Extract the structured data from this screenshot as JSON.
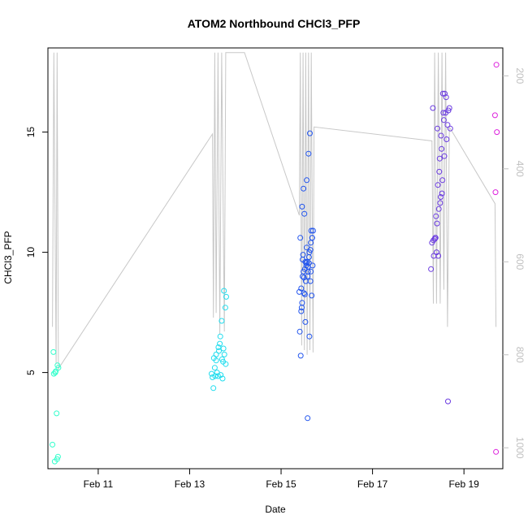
{
  "chart_data": {
    "type": "scatter",
    "title": "ATOM2 Northbound CHCl3_PFP",
    "xlabel": "Date",
    "ylabel": "CHCl3_PFP",
    "xlim": [
      9.9,
      19.85
    ],
    "ylim": [
      1.0,
      18.5
    ],
    "x_ticks": [
      {
        "value": 11,
        "label": "Feb 11"
      },
      {
        "value": 13,
        "label": "Feb 13"
      },
      {
        "value": 15,
        "label": "Feb 15"
      },
      {
        "value": 17,
        "label": "Feb 17"
      },
      {
        "value": 19,
        "label": "Feb 19"
      }
    ],
    "y_ticks": [
      5,
      10,
      15
    ],
    "y2_ticks": [
      200,
      400,
      600,
      800,
      1000
    ],
    "y2_range_at_ylim": [
      1045,
      140
    ],
    "y2_color": "#c0c0c0",
    "grid": false,
    "series": [
      {
        "color": "#33ffcc",
        "x": [
          10.0,
          10.02,
          10.03,
          10.05,
          10.06,
          10.07,
          10.09,
          10.1,
          10.11,
          10.12,
          10.13
        ],
        "y": [
          2.0,
          5.85,
          4.95,
          1.3,
          5.0,
          5.05,
          3.3,
          1.4,
          5.3,
          1.5,
          5.2
        ]
      },
      {
        "color": "#22ddee",
        "x": [
          13.48,
          13.5,
          13.52,
          13.53,
          13.55,
          13.56,
          13.58,
          13.6,
          13.62,
          13.64,
          13.66,
          13.68,
          13.7,
          13.72,
          13.73,
          13.75,
          13.76,
          13.78,
          13.8,
          13.58,
          13.63,
          13.67,
          13.71,
          13.74,
          13.79
        ],
        "y": [
          4.95,
          4.8,
          4.35,
          5.6,
          5.2,
          4.85,
          5.75,
          5.0,
          4.85,
          5.9,
          6.2,
          4.9,
          7.15,
          4.75,
          5.45,
          8.4,
          5.75,
          7.7,
          8.15,
          5.5,
          6.05,
          6.5,
          5.55,
          6.0,
          5.35
        ]
      },
      {
        "color": "#2255ee",
        "x": [
          15.4,
          15.41,
          15.42,
          15.43,
          15.44,
          15.45,
          15.46,
          15.47,
          15.48,
          15.49,
          15.5,
          15.51,
          15.52,
          15.53,
          15.54,
          15.55,
          15.56,
          15.57,
          15.58,
          15.59,
          15.6,
          15.61,
          15.62,
          15.63,
          15.64,
          15.65,
          15.66,
          15.67,
          15.68,
          15.69,
          15.7,
          15.44,
          15.47,
          15.5,
          15.53,
          15.56,
          15.59,
          15.62,
          15.65,
          15.68,
          15.46,
          15.52,
          15.58,
          15.64,
          15.49,
          15.55,
          15.61
        ],
        "y": [
          8.35,
          6.7,
          10.6,
          5.7,
          8.5,
          7.7,
          11.9,
          9.0,
          9.9,
          12.65,
          8.3,
          11.6,
          9.3,
          9.6,
          8.8,
          9.45,
          13.0,
          9.6,
          3.1,
          9.2,
          14.1,
          9.55,
          6.5,
          14.95,
          8.8,
          9.2,
          10.9,
          8.2,
          10.6,
          9.45,
          10.9,
          7.55,
          9.7,
          8.95,
          7.1,
          10.2,
          9.4,
          10.0,
          10.4,
          10.6,
          7.9,
          8.25,
          9.0,
          10.1,
          9.2,
          9.55,
          9.8
        ]
      },
      {
        "color": "#6a3ae0",
        "x": [
          18.28,
          18.3,
          18.32,
          18.34,
          18.36,
          18.38,
          18.4,
          18.42,
          18.44,
          18.46,
          18.48,
          18.5,
          18.52,
          18.54,
          18.56,
          18.58,
          18.6,
          18.62,
          18.64,
          18.66,
          18.68,
          18.7,
          18.33,
          18.37,
          18.41,
          18.45,
          18.49,
          18.53,
          18.57,
          18.61,
          18.65,
          18.39,
          18.43,
          18.47,
          18.51,
          18.55
        ],
        "y": [
          9.3,
          10.4,
          16.0,
          9.85,
          10.55,
          10.6,
          10.0,
          15.15,
          9.85,
          13.35,
          12.05,
          14.85,
          12.45,
          16.6,
          15.5,
          16.6,
          15.8,
          14.7,
          15.3,
          15.9,
          16.0,
          15.15,
          10.5,
          10.6,
          11.2,
          11.8,
          12.3,
          13.0,
          14.0,
          16.45,
          3.8,
          11.5,
          12.8,
          13.9,
          14.3,
          15.8
        ]
      },
      {
        "color": "#dd22dd",
        "x": [
          19.68,
          19.69,
          19.7,
          19.71,
          19.72
        ],
        "y": [
          15.7,
          12.5,
          1.7,
          17.8,
          15.0
        ]
      }
    ],
    "secondary_line": {
      "color": "#c8c8c8",
      "y2_values": [
        [
          10.0,
          740
        ],
        [
          10.03,
          150
        ],
        [
          10.05,
          420
        ],
        [
          10.08,
          820
        ],
        [
          10.1,
          150
        ],
        [
          10.13,
          830
        ],
        [
          13.5,
          325
        ],
        [
          13.52,
          720
        ],
        [
          13.55,
          150
        ],
        [
          13.58,
          710
        ],
        [
          13.62,
          150
        ],
        [
          13.66,
          755
        ],
        [
          13.7,
          150
        ],
        [
          13.76,
          750
        ],
        [
          13.79,
          150
        ],
        [
          14.2,
          150
        ],
        [
          15.4,
          500
        ],
        [
          15.42,
          150
        ],
        [
          15.45,
          780
        ],
        [
          15.48,
          150
        ],
        [
          15.51,
          790
        ],
        [
          15.54,
          150
        ],
        [
          15.57,
          800
        ],
        [
          15.6,
          150
        ],
        [
          15.63,
          790
        ],
        [
          15.66,
          150
        ],
        [
          15.7,
          795
        ],
        [
          15.72,
          310
        ],
        [
          18.3,
          340
        ],
        [
          18.33,
          690
        ],
        [
          18.36,
          150
        ],
        [
          18.4,
          690
        ],
        [
          18.44,
          150
        ],
        [
          18.48,
          690
        ],
        [
          18.52,
          150
        ],
        [
          18.56,
          660
        ],
        [
          18.6,
          150
        ],
        [
          18.64,
          740
        ],
        [
          18.68,
          310
        ],
        [
          19.68,
          475
        ],
        [
          19.7,
          740
        ]
      ]
    }
  }
}
